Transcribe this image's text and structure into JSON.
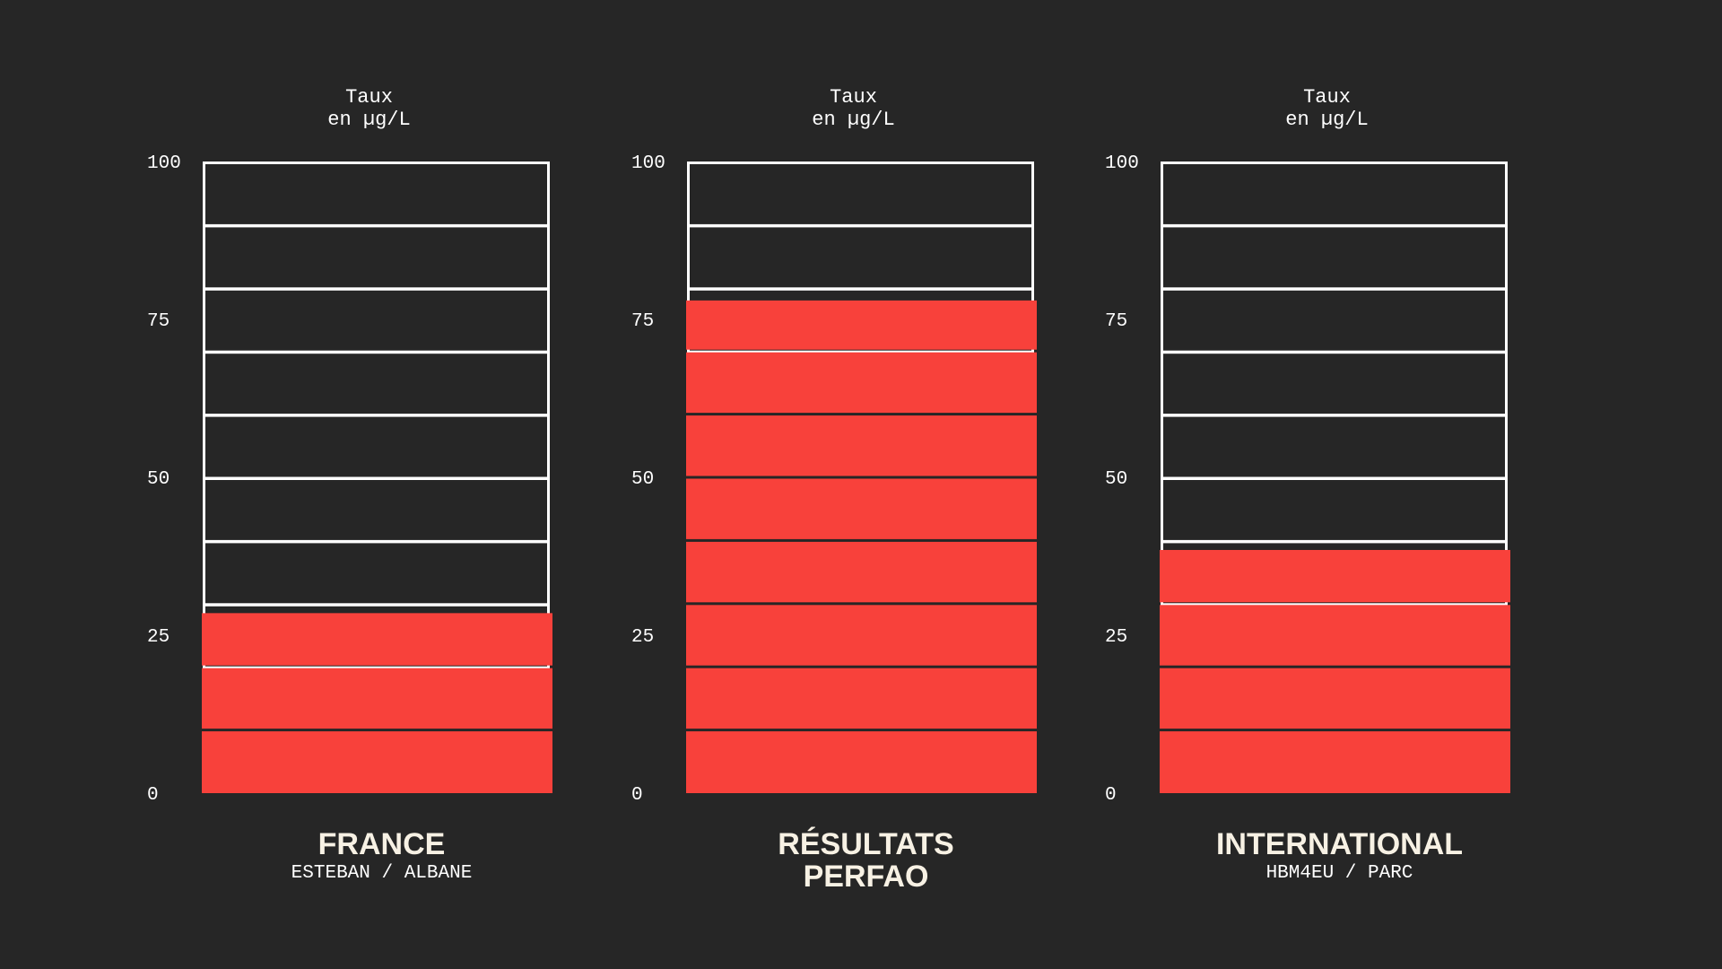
{
  "chart_data": {
    "type": "bar",
    "unit_label": [
      "Taux",
      "en µg/L"
    ],
    "y_ticks": [
      0,
      25,
      50,
      75,
      100
    ],
    "ylim": [
      0,
      100
    ],
    "cell_step": 10,
    "grid": true,
    "panels": [
      {
        "title": [
          "FRANCE"
        ],
        "subtitle": "ESTEBAN / ALBANE",
        "value": 28.5
      },
      {
        "title": [
          "RÉSULTATS",
          "PERFAO"
        ],
        "subtitle": "",
        "value": 78
      },
      {
        "title": [
          "INTERNATIONAL"
        ],
        "subtitle": "HBM4EU / PARC",
        "value": 38.5
      }
    ]
  },
  "colors": {
    "background": "#262626",
    "fill": "#f8413b",
    "outline": "#ffffff",
    "text": "#ffffff",
    "title": "#f7f1e4"
  }
}
